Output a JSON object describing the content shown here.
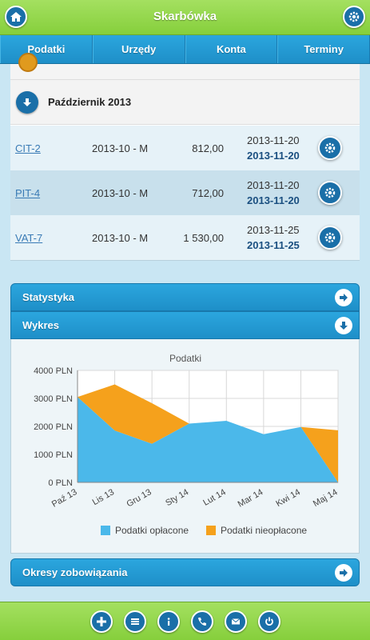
{
  "header": {
    "title": "Skarbówka"
  },
  "nav": {
    "tabs": [
      "Podatki",
      "Urzędy",
      "Konta",
      "Terminy"
    ]
  },
  "month": {
    "title": "Październik 2013"
  },
  "rows": [
    {
      "name": "CIT-2",
      "period": "2013-10 - M",
      "amount": "812,00",
      "date1": "2013-11-20",
      "date2": "2013-11-20"
    },
    {
      "name": "PIT-4",
      "period": "2013-10 - M",
      "amount": "712,00",
      "date1": "2013-11-20",
      "date2": "2013-11-20"
    },
    {
      "name": "VAT-7",
      "period": "2013-10 - M",
      "amount": "1 530,00",
      "date1": "2013-11-25",
      "date2": "2013-11-25"
    }
  ],
  "sections": {
    "statystyka": "Statystyka",
    "wykres": "Wykres",
    "okresy": "Okresy zobowiązania"
  },
  "chart_data": {
    "type": "area",
    "title": "Podatki",
    "categories": [
      "Paź 13",
      "Lis 13",
      "Gru 13",
      "Sty 14",
      "Lut 14",
      "Mar 14",
      "Kwi 14",
      "Maj 14"
    ],
    "y_ticks": [
      "0 PLN",
      "1000 PLN",
      "2000 PLN",
      "3000 PLN",
      "4000 PLN"
    ],
    "ylim": [
      0,
      4000
    ],
    "series": [
      {
        "name": "Podatki opłacone",
        "color": "#4bb8ea",
        "values": [
          3050,
          1850,
          1380,
          2100,
          2200,
          1720,
          1980,
          0
        ]
      },
      {
        "name": "Podatki nieopłacone",
        "color": "#f5a11c",
        "values": [
          0,
          1650,
          1450,
          0,
          0,
          0,
          0,
          1860
        ]
      }
    ],
    "legend_position": "bottom",
    "grid": true
  },
  "footer": {
    "icons": [
      "plus-icon",
      "menu-icon",
      "info-icon",
      "phone-icon",
      "mail-icon",
      "power-icon"
    ]
  }
}
